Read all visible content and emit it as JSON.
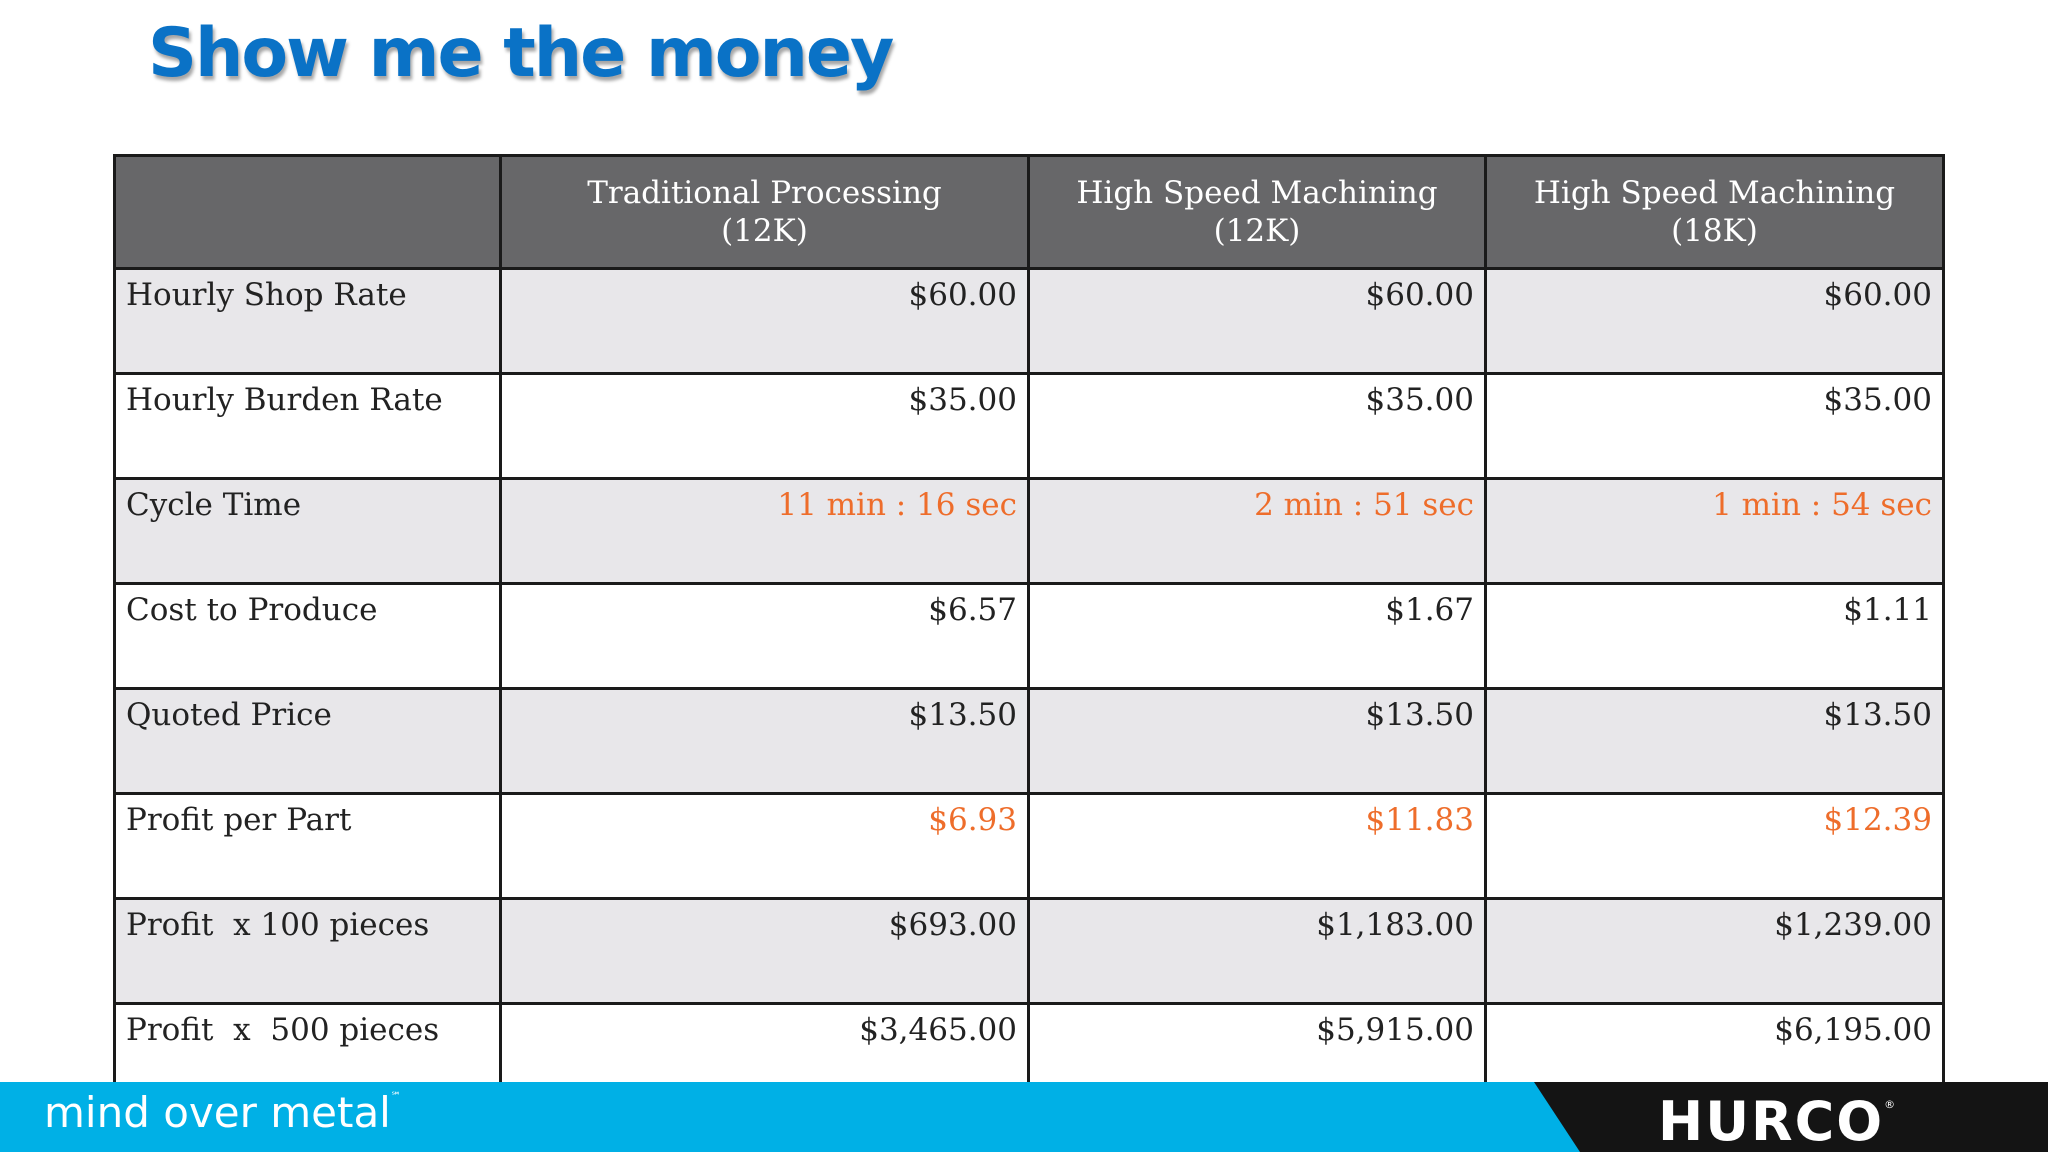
{
  "title": "Show me the money",
  "colors": {
    "title": "#0a72c6",
    "header_bg": "#676769",
    "shaded_row": "#e8e7ea",
    "highlight": "#ee6d2b",
    "footer_blue": "#00b0e6",
    "footer_black": "#141414"
  },
  "table": {
    "headers": [
      "",
      "Traditional Processing\n(12K)",
      "High Speed Machining\n(12K)",
      "High Speed Machining\n(18K)"
    ],
    "rows": [
      {
        "label": "Hourly Shop Rate",
        "values": [
          "$60.00",
          "$60.00",
          "$60.00"
        ]
      },
      {
        "label": "Hourly Burden Rate",
        "values": [
          "$35.00",
          "$35.00",
          "$35.00"
        ]
      },
      {
        "label": "Cycle Time",
        "values": [
          "11 min : 16 sec",
          "2 min : 51 sec",
          "1 min : 54 sec"
        ]
      },
      {
        "label": "Cost to Produce",
        "values": [
          "$6.57",
          "$1.67",
          "$1.11"
        ]
      },
      {
        "label": "Quoted Price",
        "values": [
          "$13.50",
          "$13.50",
          "$13.50"
        ]
      },
      {
        "label": "Profit per Part",
        "values": [
          "$6.93",
          "$11.83",
          "$12.39"
        ]
      },
      {
        "label": "Profit  x 100 pieces",
        "values": [
          "$693.00",
          "$1,183.00",
          "$1,239.00"
        ]
      },
      {
        "label": "Profit  x  500 pieces",
        "values": [
          "$3,465.00",
          "$5,915.00",
          "$6,195.00"
        ]
      }
    ]
  },
  "footer": {
    "tagline": "mind over metal",
    "tagline_mark": "℠",
    "logo": "HURCO",
    "logo_mark": "®"
  }
}
